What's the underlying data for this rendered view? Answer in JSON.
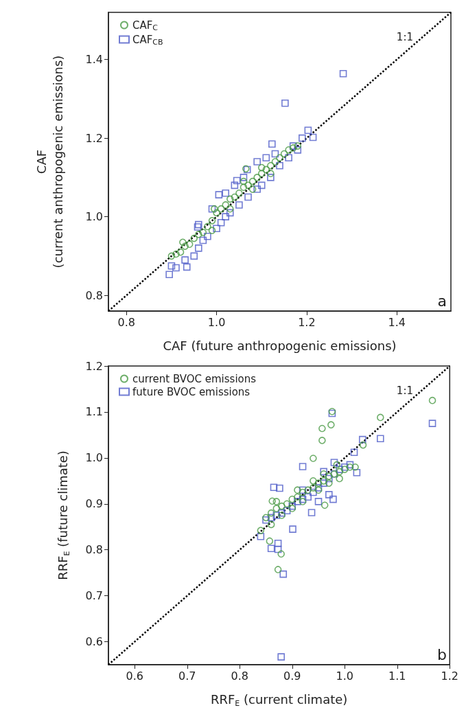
{
  "chart_data": [
    {
      "type": "scatter",
      "xlabel": "CAF (future anthropogenic emissions)",
      "ylabel": "CAF\n(current anthropogenic emissions)",
      "xlim": [
        0.76,
        1.52
      ],
      "ylim": [
        0.76,
        1.52
      ],
      "xticks": [
        {
          "value": 0.8,
          "label": "0.8"
        },
        {
          "value": 1,
          "label": "1.0"
        },
        {
          "value": 1.2,
          "label": "1.2"
        },
        {
          "value": 1.4,
          "label": "1.4"
        }
      ],
      "yticks": [
        {
          "value": 0.8,
          "label": "0.8"
        },
        {
          "value": 1,
          "label": "1.0"
        },
        {
          "value": 1.2,
          "label": "1.2"
        },
        {
          "value": 1.4,
          "label": "1.4"
        }
      ],
      "grid": false,
      "legend": "top left",
      "annotations": [
        "1:1",
        "a"
      ],
      "series": [
        {
          "name": "CAF$_{C}$",
          "color": "#4a9a45",
          "marker": "circle",
          "x": [
            0.9,
            0.91,
            0.92,
            0.93,
            0.94,
            0.95,
            0.96,
            0.97,
            0.98,
            0.99,
            0.995,
            1.0,
            1.01,
            1.02,
            1.03,
            1.04,
            1.05,
            1.06,
            1.07,
            1.08,
            1.09,
            1.1,
            1.11,
            1.12,
            1.13,
            1.14,
            1.15,
            1.16,
            1.17,
            1.18,
            1.065,
            0.99,
            1.03,
            1.08,
            1.12,
            0.925,
            1.06,
            1.1
          ],
          "values": [
            0.9,
            0.905,
            0.91,
            0.925,
            0.93,
            0.945,
            0.955,
            0.96,
            0.975,
            0.99,
            1.02,
            1.01,
            1.02,
            1.03,
            1.045,
            1.05,
            1.06,
            1.075,
            1.08,
            1.09,
            1.1,
            1.11,
            1.12,
            1.13,
            1.14,
            1.15,
            1.16,
            1.17,
            1.175,
            1.18,
            1.122,
            0.965,
            1.02,
            1.07,
            1.11,
            0.935,
            1.09,
            1.125
          ]
        },
        {
          "name": "CAF$_{CB}$",
          "color": "#4d5bc8",
          "marker": "square",
          "x": [
            0.9,
            0.91,
            0.93,
            0.95,
            0.96,
            0.97,
            0.98,
            1.0,
            1.01,
            1.02,
            1.03,
            1.05,
            1.07,
            1.09,
            1.1,
            1.12,
            1.14,
            1.16,
            1.18,
            1.19,
            1.17,
            1.13,
            1.11,
            1.09,
            1.06,
            1.04,
            1.02,
            0.99,
            0.96,
            1.281,
            1.152,
            1.005,
            0.895,
            1.203,
            1.214,
            0.934,
            1.123,
            1.068,
            1.045,
            0.958
          ],
          "values": [
            0.875,
            0.87,
            0.89,
            0.9,
            0.92,
            0.94,
            0.95,
            0.97,
            0.985,
            1.0,
            1.01,
            1.03,
            1.05,
            1.07,
            1.08,
            1.1,
            1.13,
            1.15,
            1.17,
            1.2,
            1.18,
            1.16,
            1.15,
            1.14,
            1.1,
            1.08,
            1.06,
            1.02,
            0.98,
            1.364,
            1.289,
            1.056,
            0.853,
            1.22,
            1.202,
            0.872,
            1.185,
            1.12,
            1.092,
            0.974
          ]
        },
        {
          "type": "line",
          "color": "#000000",
          "marker": "none",
          "line_style": "dotted",
          "x": [
            0.76,
            1.52
          ],
          "values": [
            0.76,
            1.52
          ]
        }
      ]
    },
    {
      "type": "scatter",
      "xlabel": "RRF$_{E}$ (current climate)",
      "ylabel": "RRF$_{E}$ (future climate)",
      "xlim": [
        0.55,
        1.2
      ],
      "ylim": [
        0.55,
        1.2
      ],
      "xticks": [
        {
          "value": 0.6,
          "label": "0.6"
        },
        {
          "value": 0.7,
          "label": "0.7"
        },
        {
          "value": 0.8,
          "label": "0.8"
        },
        {
          "value": 0.9,
          "label": "0.9"
        },
        {
          "value": 1,
          "label": "1.0"
        },
        {
          "value": 1.1,
          "label": "1.1"
        },
        {
          "value": 1.2,
          "label": "1.2"
        }
      ],
      "yticks": [
        {
          "value": 0.6,
          "label": "0.6"
        },
        {
          "value": 0.7,
          "label": "0.7"
        },
        {
          "value": 0.8,
          "label": "0.8"
        },
        {
          "value": 0.9,
          "label": "0.9"
        },
        {
          "value": 1,
          "label": "1.0"
        },
        {
          "value": 1.1,
          "label": "1.1"
        },
        {
          "value": 1.2,
          "label": "1.2"
        }
      ],
      "grid": false,
      "legend": "top left",
      "annotations": [
        "1:1",
        "b"
      ],
      "series": [
        {
          "name": "current BVOC emissions",
          "color": "#4a9a45",
          "marker": "circle",
          "x": [
            0.85,
            0.86,
            0.87,
            0.88,
            0.89,
            0.9,
            0.91,
            0.92,
            0.93,
            0.94,
            0.95,
            0.96,
            0.97,
            0.98,
            0.99,
            1.0,
            1.01,
            1.02,
            0.86,
            0.88,
            0.9,
            0.92,
            0.95,
            0.97,
            0.99,
            0.87,
            0.91,
            0.94,
            0.96,
            0.985,
            1.167,
            1.068,
            0.976,
            0.974,
            0.957,
            0.957,
            0.94,
            1.035,
            0.873,
            0.879,
            0.857,
            0.84,
            0.862,
            0.962
          ],
          "values": [
            0.87,
            0.88,
            0.89,
            0.895,
            0.9,
            0.91,
            0.915,
            0.925,
            0.93,
            0.935,
            0.945,
            0.95,
            0.96,
            0.965,
            0.97,
            0.975,
            0.98,
            0.98,
            0.855,
            0.875,
            0.89,
            0.905,
            0.93,
            0.945,
            0.955,
            0.905,
            0.93,
            0.95,
            0.965,
            0.985,
            1.125,
            1.088,
            1.101,
            1.072,
            1.064,
            1.038,
            0.999,
            1.028,
            0.757,
            0.791,
            0.819,
            0.842,
            0.906,
            0.897
          ]
        },
        {
          "name": "future BVOC emissions",
          "color": "#4d5bc8",
          "marker": "square",
          "x": [
            0.85,
            0.86,
            0.87,
            0.88,
            0.89,
            0.9,
            0.91,
            0.92,
            0.93,
            0.94,
            0.95,
            0.96,
            0.97,
            0.98,
            0.99,
            1.0,
            1.01,
            0.92,
            0.96,
            0.98,
            0.95,
            0.97,
            1.167,
            1.068,
            0.976,
            1.034,
            1.018,
            0.883,
            0.879,
            0.873,
            0.873,
            0.86,
            0.865,
            0.876,
            0.92,
            0.937,
            0.901,
            0.978,
            1.023,
            0.84
          ],
          "values": [
            0.865,
            0.87,
            0.875,
            0.88,
            0.885,
            0.895,
            0.905,
            0.91,
            0.915,
            0.925,
            0.935,
            0.945,
            0.955,
            0.965,
            0.975,
            0.98,
            0.985,
            0.93,
            0.97,
            0.99,
            0.905,
            0.92,
            1.075,
            1.042,
            1.097,
            1.04,
            1.012,
            0.747,
            0.567,
            0.814,
            0.801,
            0.803,
            0.936,
            0.934,
            0.981,
            0.881,
            0.845,
            0.91,
            0.968,
            0.829
          ]
        },
        {
          "type": "line",
          "color": "#000000",
          "marker": "none",
          "line_style": "dotted",
          "x": [
            0.55,
            1.2
          ],
          "values": [
            0.55,
            1.2
          ]
        }
      ]
    }
  ]
}
